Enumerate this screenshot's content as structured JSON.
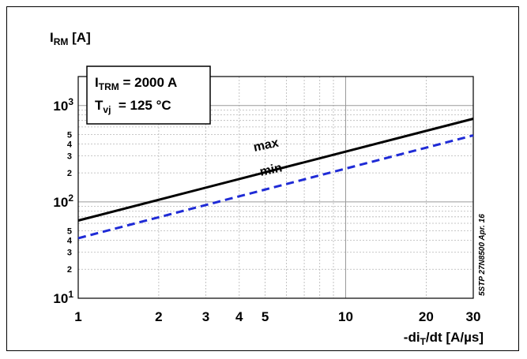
{
  "chart_data": {
    "type": "line",
    "x_scale": "log",
    "y_scale": "log",
    "xlim": [
      1,
      30
    ],
    "ylim": [
      10,
      2000
    ],
    "grid": true,
    "xlabel": {
      "prefix": "-di",
      "sub": "T",
      "suffix": "/dt [A/µs]"
    },
    "ylabel": {
      "main": "I",
      "sub": "RM",
      "unit": " [A]"
    },
    "x_ticks": [
      {
        "value": 1,
        "label": "1"
      },
      {
        "value": 2,
        "label": "2"
      },
      {
        "value": 3,
        "label": "3"
      },
      {
        "value": 4,
        "label": "4"
      },
      {
        "value": 5,
        "label": "5"
      },
      {
        "value": 10,
        "label": "10"
      },
      {
        "value": 20,
        "label": "20"
      },
      {
        "value": 30,
        "label": "30"
      }
    ],
    "y_ticks": [
      {
        "value": 10,
        "base": "10",
        "exp": "1"
      },
      {
        "value": 20,
        "label": "2"
      },
      {
        "value": 30,
        "label": "3"
      },
      {
        "value": 40,
        "label": "4"
      },
      {
        "value": 50,
        "label": "5"
      },
      {
        "value": 100,
        "base": "10",
        "exp": "2"
      },
      {
        "value": 200,
        "label": "2"
      },
      {
        "value": 300,
        "label": "3"
      },
      {
        "value": 400,
        "label": "4"
      },
      {
        "value": 500,
        "label": "5"
      },
      {
        "value": 1000,
        "base": "10",
        "exp": "3"
      }
    ],
    "conditions": [
      {
        "symbol": "I",
        "sub": "TRM",
        "text": " = 2000 A"
      },
      {
        "symbol": "T",
        "sub": "vj",
        "text": "  = 125 °C"
      }
    ],
    "series": [
      {
        "name": "max",
        "color": "#000000",
        "dash": "solid",
        "x": [
          1,
          30
        ],
        "y": [
          64,
          730
        ]
      },
      {
        "name": "min",
        "color": "#1f2bd6",
        "dash": "dashed",
        "x": [
          1,
          30
        ],
        "y": [
          42,
          490
        ]
      }
    ],
    "side_text": "5STP 27N8500 Apr. 16"
  }
}
